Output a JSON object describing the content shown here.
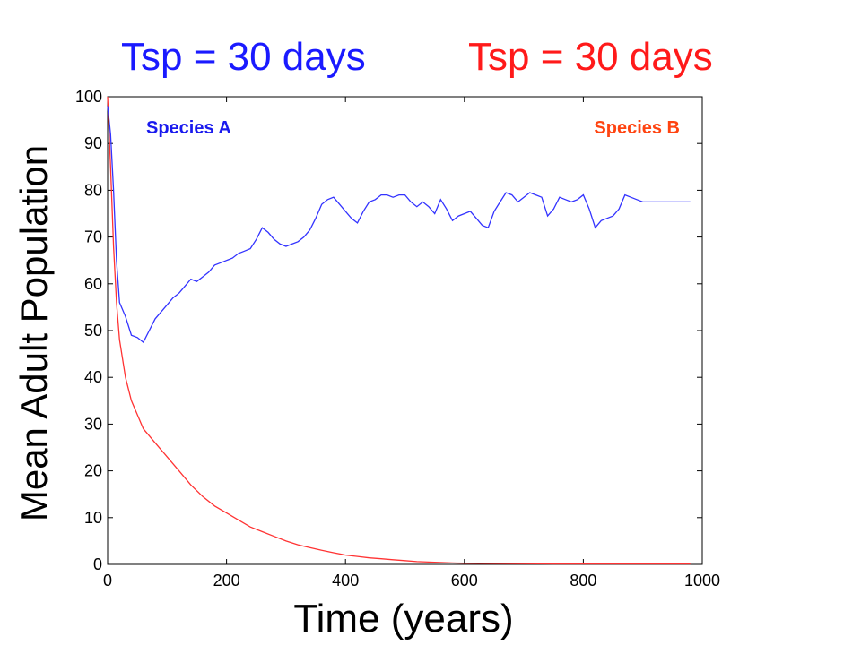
{
  "header": {
    "left_title": "Tsp = 30 days",
    "right_title": "Tsp = 30 days",
    "left_color": "#1a1aff",
    "right_color": "#ff1a1a"
  },
  "chart_data": {
    "type": "line",
    "xlabel": "Time (years)",
    "ylabel": "Mean Adult Population",
    "xlim": [
      0,
      1000
    ],
    "ylim": [
      0,
      100
    ],
    "x_ticks": [
      "0",
      "200",
      "400",
      "600",
      "800",
      "1000"
    ],
    "y_ticks": [
      "0",
      "10",
      "20",
      "30",
      "40",
      "50",
      "60",
      "70",
      "80",
      "90",
      "100"
    ],
    "grid": false,
    "series": [
      {
        "name": "Species A",
        "color": "#3333ff",
        "x": [
          0,
          5,
          10,
          15,
          20,
          30,
          40,
          50,
          60,
          70,
          80,
          90,
          100,
          110,
          120,
          130,
          140,
          150,
          160,
          170,
          180,
          190,
          200,
          210,
          220,
          230,
          240,
          250,
          260,
          270,
          280,
          290,
          300,
          310,
          320,
          330,
          340,
          350,
          360,
          370,
          380,
          390,
          400,
          410,
          420,
          430,
          440,
          450,
          460,
          470,
          480,
          490,
          500,
          510,
          520,
          530,
          540,
          550,
          560,
          570,
          580,
          590,
          600,
          610,
          620,
          630,
          640,
          650,
          660,
          670,
          680,
          690,
          700,
          710,
          720,
          730,
          740,
          750,
          760,
          770,
          780,
          790,
          800,
          810,
          820,
          830,
          840,
          850,
          860,
          870,
          880,
          890,
          900,
          910,
          920,
          930,
          940,
          950,
          960,
          970,
          980
        ],
        "values": [
          98,
          92,
          80,
          65,
          56,
          53,
          49,
          48.5,
          47.5,
          50,
          52.5,
          54,
          55.5,
          57,
          58,
          59.5,
          61,
          60.5,
          61.5,
          62.5,
          64,
          64.5,
          65,
          65.5,
          66.5,
          67,
          67.5,
          69.5,
          72,
          71,
          69.5,
          68.5,
          68,
          68.5,
          69,
          70,
          71.5,
          74,
          77,
          78,
          78.5,
          77,
          75.5,
          74,
          73,
          75.5,
          77.5,
          78,
          79,
          79,
          78.5,
          79,
          79,
          77.5,
          76.5,
          77.5,
          76.5,
          75,
          78,
          76,
          73.5,
          74.5,
          75,
          75.5,
          74,
          72.5,
          72,
          75.5,
          77.5,
          79.5,
          79,
          77.5,
          78.5,
          79.5,
          79,
          78.5,
          74.5,
          76,
          78.5,
          78,
          77.5,
          78,
          79,
          76,
          72,
          73.5,
          74,
          74.5,
          76,
          79,
          78.5,
          78,
          77.5,
          77.5,
          77.5,
          77.5,
          77.5,
          77.5,
          77.5,
          77.5,
          77.5
        ]
      },
      {
        "name": "Species B",
        "color": "#ff3333",
        "x": [
          0,
          5,
          10,
          15,
          20,
          30,
          40,
          50,
          60,
          70,
          80,
          100,
          120,
          140,
          160,
          180,
          200,
          220,
          240,
          260,
          280,
          300,
          320,
          340,
          360,
          380,
          400,
          420,
          440,
          460,
          480,
          500,
          520,
          540,
          560,
          580,
          600,
          650,
          700,
          750,
          800,
          850,
          900,
          950,
          980
        ],
        "values": [
          100,
          85,
          68,
          56,
          48,
          40,
          35,
          32,
          29,
          27.5,
          26,
          23,
          20,
          17,
          14.5,
          12.5,
          11,
          9.5,
          8,
          7,
          6,
          5,
          4.2,
          3.6,
          3,
          2.5,
          2,
          1.7,
          1.4,
          1.2,
          1,
          0.8,
          0.6,
          0.5,
          0.4,
          0.3,
          0.25,
          0.2,
          0.15,
          0.1,
          0.1,
          0.1,
          0.1,
          0.1,
          0.1
        ]
      }
    ]
  }
}
